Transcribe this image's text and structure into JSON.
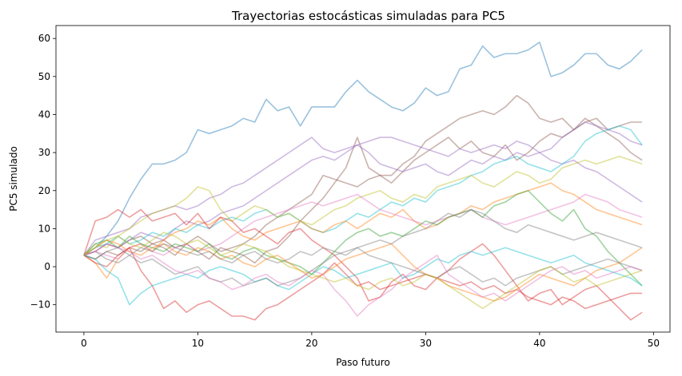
{
  "chart_data": {
    "type": "line",
    "title": "Trayectorias estocásticas simuladas para PC5",
    "xlabel": "Paso futuro",
    "ylabel": "PC5 simulado",
    "xlim": [
      -2.45,
      51.45
    ],
    "ylim": [
      -17.2,
      63.4
    ],
    "xticks": [
      0,
      10,
      20,
      30,
      40,
      50
    ],
    "yticks": [
      -10,
      0,
      10,
      20,
      30,
      40,
      50,
      60
    ],
    "grid": false,
    "legend": "none",
    "series": [
      {
        "color": "#1f77b4",
        "values": [
          3,
          5,
          8,
          12,
          18,
          23,
          27,
          27,
          28,
          30,
          36,
          35,
          36,
          37,
          39,
          38,
          44,
          41,
          42,
          37,
          42,
          42,
          42,
          46,
          49,
          46,
          44,
          42,
          41,
          43,
          47,
          45,
          46,
          52,
          53,
          58,
          55,
          56,
          56,
          57,
          59,
          50,
          51,
          53,
          56,
          56,
          53,
          52,
          54,
          57
        ]
      },
      {
        "color": "#8c564b",
        "values": [
          3,
          4,
          6,
          5,
          7,
          8,
          6,
          7,
          5,
          6,
          8,
          6,
          4,
          5,
          6,
          8,
          11,
          13,
          15,
          17,
          19,
          24,
          23,
          22,
          21,
          23,
          24,
          24,
          27,
          29,
          33,
          35,
          37,
          39,
          40,
          41,
          40,
          42,
          45,
          43,
          39,
          38,
          39,
          36,
          38,
          39,
          36,
          37,
          38,
          38
        ]
      },
      {
        "color": "#8c564b",
        "values": [
          3,
          2,
          4,
          3,
          5,
          4,
          6,
          5,
          3,
          6,
          4,
          2,
          5,
          4,
          3,
          1,
          4,
          5,
          8,
          12,
          15,
          18,
          22,
          26,
          34,
          26,
          24,
          22,
          25,
          28,
          30,
          32,
          34,
          31,
          33,
          30,
          29,
          32,
          28,
          30,
          33,
          35,
          34,
          36,
          39,
          37,
          35,
          33,
          30,
          28
        ]
      },
      {
        "color": "#9467bd",
        "values": [
          3,
          4,
          6,
          5,
          7,
          9,
          8,
          7,
          10,
          12,
          11,
          12,
          14,
          15,
          16,
          18,
          20,
          22,
          24,
          26,
          28,
          29,
          28,
          30,
          32,
          33,
          34,
          34,
          33,
          32,
          31,
          30,
          29,
          31,
          30,
          31,
          32,
          31,
          33,
          32,
          30,
          31,
          34,
          36,
          38,
          37,
          36,
          35,
          33,
          32
        ]
      },
      {
        "color": "#9467bd",
        "values": [
          3,
          7,
          8,
          9,
          10,
          13,
          14,
          15,
          16,
          15,
          16,
          18,
          19,
          21,
          22,
          24,
          26,
          28,
          30,
          32,
          34,
          31,
          30,
          31,
          32,
          30,
          27,
          26,
          25,
          26,
          27,
          25,
          24,
          26,
          28,
          27,
          29,
          28,
          30,
          29,
          30,
          28,
          27,
          28,
          26,
          25,
          23,
          21,
          19,
          17
        ]
      },
      {
        "color": "#17becf",
        "values": [
          3,
          5,
          6,
          8,
          6,
          7,
          9,
          8,
          10,
          9,
          11,
          10,
          12,
          13,
          12,
          14,
          15,
          13,
          14,
          12,
          10,
          9,
          10,
          12,
          14,
          13,
          15,
          17,
          16,
          18,
          17,
          20,
          21,
          22,
          24,
          25,
          27,
          28,
          29,
          27,
          26,
          25,
          27,
          29,
          33,
          35,
          36,
          37,
          36,
          32
        ]
      },
      {
        "color": "#bcbd22",
        "values": [
          3,
          6,
          5,
          8,
          10,
          12,
          14,
          15,
          16,
          18,
          21,
          20,
          15,
          12,
          14,
          16,
          15,
          13,
          14,
          12,
          11,
          13,
          15,
          16,
          18,
          19,
          20,
          18,
          17,
          19,
          18,
          21,
          22,
          23,
          24,
          22,
          21,
          23,
          25,
          24,
          22,
          23,
          26,
          27,
          28,
          27,
          28,
          29,
          28,
          27
        ]
      },
      {
        "color": "#ff7f0e",
        "values": [
          3,
          1,
          -3,
          2,
          5,
          6,
          4,
          7,
          9,
          10,
          12,
          11,
          13,
          10,
          8,
          7,
          9,
          10,
          11,
          12,
          10,
          9,
          11,
          12,
          10,
          12,
          14,
          13,
          15,
          12,
          10,
          11,
          13,
          14,
          16,
          15,
          17,
          18,
          19,
          20,
          21,
          22,
          20,
          19,
          17,
          15,
          14,
          13,
          12,
          11
        ]
      },
      {
        "color": "#e377c2",
        "values": [
          3,
          4,
          3,
          2,
          5,
          6,
          4,
          3,
          5,
          6,
          4,
          5,
          6,
          8,
          10,
          12,
          13,
          14,
          15,
          16,
          17,
          16,
          17,
          18,
          19,
          17,
          15,
          14,
          13,
          12,
          11,
          12,
          13,
          14,
          15,
          13,
          12,
          11,
          12,
          13,
          14,
          15,
          16,
          17,
          19,
          18,
          17,
          15,
          14,
          13
        ]
      },
      {
        "color": "#2ca02c",
        "values": [
          3,
          6,
          7,
          5,
          8,
          6,
          5,
          4,
          6,
          5,
          4,
          6,
          3,
          2,
          4,
          5,
          3,
          2,
          1,
          0,
          -2,
          1,
          4,
          7,
          9,
          10,
          8,
          9,
          8,
          10,
          12,
          11,
          13,
          14,
          15,
          13,
          16,
          17,
          19,
          20,
          17,
          14,
          12,
          15,
          10,
          8,
          4,
          1,
          -2,
          -5
        ]
      },
      {
        "color": "#d62728",
        "values": [
          3,
          12,
          13,
          15,
          13,
          15,
          12,
          13,
          14,
          11,
          14,
          10,
          13,
          12,
          9,
          10,
          8,
          6,
          9,
          10,
          7,
          5,
          3,
          0,
          -3,
          -9,
          -8,
          -4,
          -2,
          -5,
          -6,
          -3,
          -1,
          2,
          4,
          6,
          3,
          -1,
          -5,
          -9,
          -7,
          -6,
          -10,
          -8,
          -6,
          -5,
          -8,
          -11,
          -14,
          -12
        ]
      },
      {
        "color": "#d62728",
        "values": [
          3,
          1,
          0,
          3,
          5,
          -1,
          -5,
          -11,
          -9,
          -12,
          -10,
          -9,
          -11,
          -13,
          -13,
          -14,
          -11,
          -10,
          -8,
          -6,
          -4,
          -2,
          1,
          -2,
          -5,
          -4,
          -6,
          -5,
          -4,
          -3,
          -2,
          -3,
          -4,
          -5,
          -4,
          -6,
          -5,
          -7,
          -6,
          -8,
          -9,
          -10,
          -8,
          -9,
          -11,
          -10,
          -9,
          -8,
          -7,
          -7
        ]
      },
      {
        "color": "#17becf",
        "values": [
          3,
          2,
          -1,
          -3,
          -10,
          -7,
          -5,
          -4,
          -3,
          -2,
          -3,
          -1,
          0,
          -1,
          -2,
          -4,
          -3,
          -5,
          -6,
          -4,
          -2,
          0,
          -1,
          -3,
          -2,
          -1,
          0,
          1,
          -3,
          -2,
          0,
          2,
          1,
          3,
          4,
          3,
          4,
          5,
          4,
          3,
          2,
          1,
          2,
          3,
          1,
          0,
          -1,
          -2,
          -3,
          -5
        ]
      },
      {
        "color": "#ff7f0e",
        "values": [
          3,
          5,
          7,
          6,
          4,
          3,
          5,
          6,
          4,
          3,
          5,
          4,
          2,
          3,
          1,
          0,
          2,
          3,
          1,
          -1,
          -3,
          -2,
          0,
          2,
          3,
          4,
          5,
          6,
          3,
          0,
          -2,
          -3,
          -5,
          -6,
          -7,
          -8,
          -9,
          -8,
          -6,
          -4,
          -2,
          -3,
          -4,
          -5,
          -3,
          -1,
          0,
          1,
          3,
          5
        ]
      },
      {
        "color": "#7f7f7f",
        "values": [
          3,
          4,
          2,
          1,
          3,
          5,
          4,
          6,
          5,
          4,
          3,
          4,
          2,
          1,
          3,
          4,
          2,
          1,
          2,
          4,
          3,
          5,
          4,
          3,
          5,
          6,
          7,
          6,
          8,
          9,
          10,
          12,
          14,
          13,
          15,
          14,
          12,
          10,
          9,
          11,
          10,
          9,
          8,
          7,
          8,
          9,
          8,
          7,
          6,
          5
        ]
      },
      {
        "color": "#7f7f7f",
        "values": [
          3,
          2,
          4,
          5,
          3,
          1,
          2,
          0,
          -2,
          -1,
          0,
          -3,
          -4,
          -3,
          -5,
          -4,
          -3,
          -5,
          -4,
          -3,
          -1,
          1,
          3,
          4,
          5,
          3,
          2,
          1,
          0,
          -1,
          -2,
          -3,
          -1,
          0,
          -2,
          -4,
          -3,
          -5,
          -3,
          -2,
          -1,
          0,
          -2,
          -1,
          0,
          1,
          2,
          1,
          0,
          -1
        ]
      },
      {
        "color": "#e377c2",
        "values": [
          3,
          4,
          6,
          5,
          4,
          2,
          3,
          1,
          -1,
          -2,
          -1,
          -3,
          -4,
          -6,
          -5,
          -3,
          -2,
          -4,
          -5,
          -3,
          -1,
          -2,
          -6,
          -9,
          -13,
          -10,
          -8,
          -6,
          -3,
          -1,
          1,
          3,
          -2,
          -4,
          -6,
          -8,
          -7,
          -9,
          -7,
          -5,
          -3,
          -1,
          0,
          -2,
          -1,
          -3,
          -2,
          -1,
          0,
          -1
        ]
      },
      {
        "color": "#bcbd22",
        "values": [
          3,
          5,
          7,
          8,
          6,
          5,
          7,
          9,
          8,
          6,
          7,
          5,
          3,
          4,
          6,
          5,
          4,
          2,
          0,
          -1,
          -2,
          -3,
          -4,
          -3,
          -5,
          -6,
          -4,
          -3,
          -5,
          -4,
          -2,
          -3,
          -5,
          -7,
          -9,
          -11,
          -9,
          -7,
          -5,
          -3,
          -1,
          0,
          -2,
          -4,
          -3,
          -5,
          -4,
          -3,
          -2,
          -1
        ]
      }
    ]
  }
}
